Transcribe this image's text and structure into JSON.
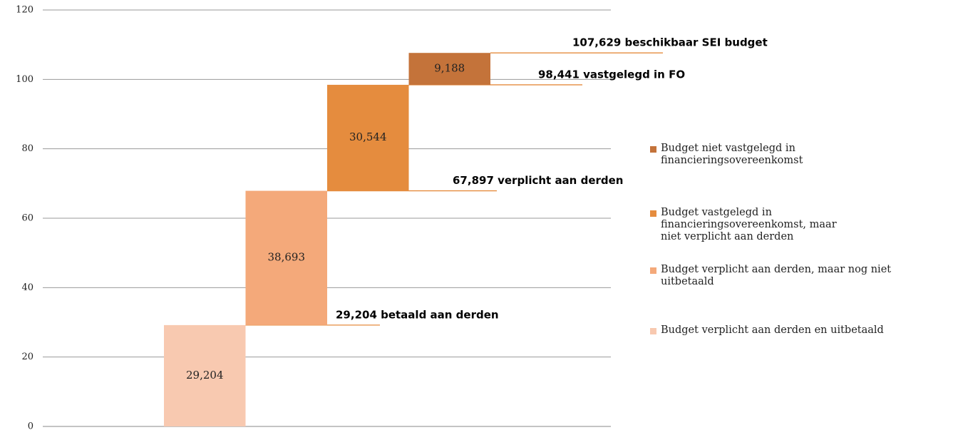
{
  "chart_data": {
    "type": "waterfall",
    "series": [
      {
        "name": "Budget verplicht aan derden en uitbetaald",
        "color": "#f8c9b0",
        "values": [
          29.204
        ],
        "value_labels": [
          "29,204"
        ]
      },
      {
        "name": "Budget verplicht aan derden, maar nog niet uitbetaald",
        "color": "#f4a97a",
        "values": [
          38.693
        ],
        "value_labels": [
          "38,693"
        ]
      },
      {
        "name": "Budget vastgelegd in financieringsovereenkomst, maar niet verplicht aan derden",
        "color": "#e58c3e",
        "values": [
          30.544
        ],
        "value_labels": [
          "30,544"
        ]
      },
      {
        "name": "Budget niet vastgelegd in financieringsovereenkomst",
        "color": "#c4733a",
        "values": [
          9.188
        ],
        "value_labels": [
          "9,188"
        ]
      }
    ],
    "annotations": [
      "29,204 betaald aan derden",
      "67,897 verplicht aan derden",
      "98,441 vastgelegd in FO",
      "107,629 beschikbaar SEI budget"
    ],
    "ylim": [
      0,
      120
    ],
    "yticks": [
      0,
      20,
      40,
      60,
      80,
      100,
      120
    ],
    "grid": true
  }
}
